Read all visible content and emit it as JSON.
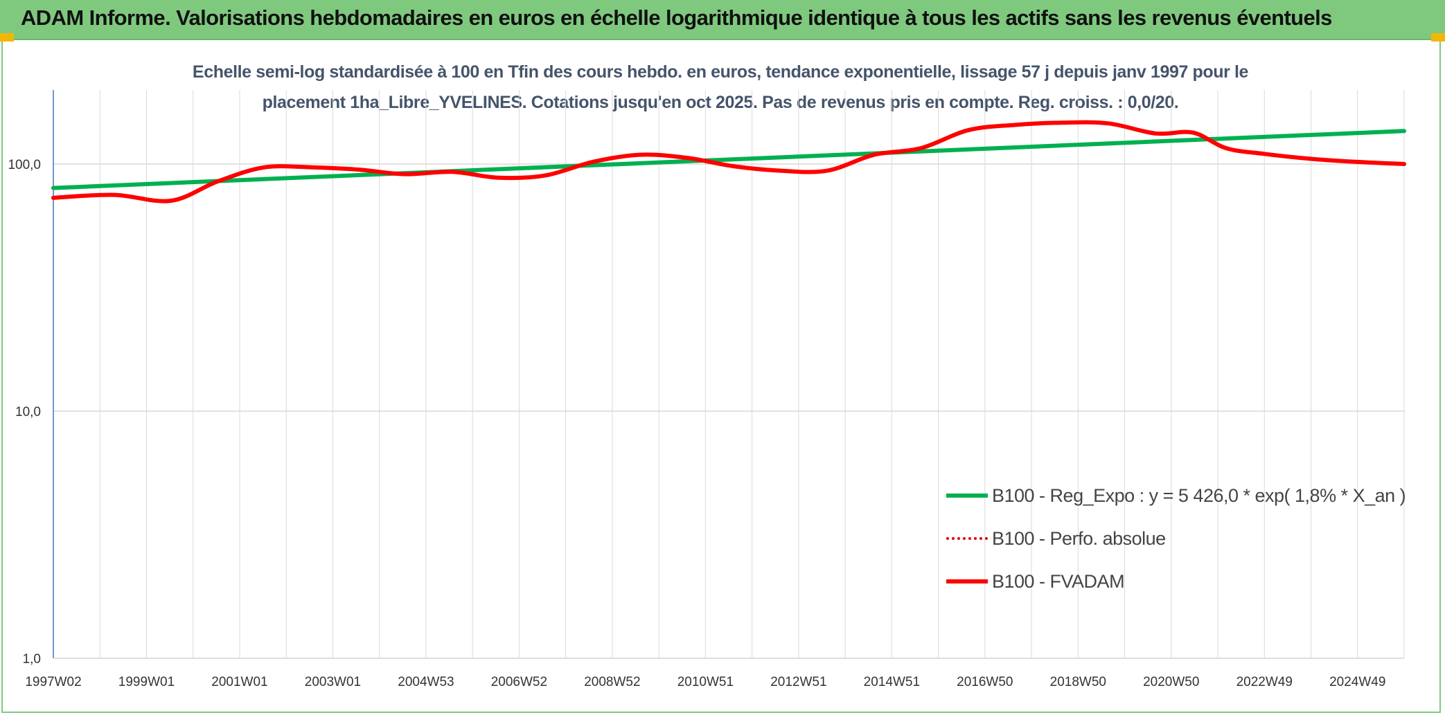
{
  "header": {
    "title": "ADAM Informe. Valorisations hebdomadaires en euros en échelle logarithmique identique à tous les actifs sans les revenus éventuels"
  },
  "chart_data": {
    "type": "line",
    "title_line1": "Echelle semi-log standardisée à 100 en Tfin des cours hebdo. en euros, tendance exponentielle, lissage 57 j depuis janv 1997 pour le",
    "title_line2": "placement 1ha_Libre_YVELINES. Cotations jusqu'en oct 2025. Pas de revenus pris en compte. Reg. croiss. : 0,0/20.",
    "y_scale": "log",
    "ylim": [
      1,
      200
    ],
    "y_ticks": [
      {
        "value": 1,
        "label": "1,0"
      },
      {
        "value": 10,
        "label": "10,0"
      },
      {
        "value": 100,
        "label": "100,0"
      }
    ],
    "x_tick_labels": [
      "1997W02",
      "1999W01",
      "2001W01",
      "2003W01",
      "2004W53",
      "2006W52",
      "2008W52",
      "2010W51",
      "2012W51",
      "2014W51",
      "2016W50",
      "2018W50",
      "2020W50",
      "2022W49",
      "2024W49"
    ],
    "xlim": [
      1997.0,
      2025.8
    ],
    "grid": true,
    "legend_position": "bottom-right",
    "colors": {
      "reg_expo": "#00b050",
      "perfo": "#e00000",
      "fvadam": "#ff0000",
      "grid": "#d9d9d9",
      "y_axis": "#4472c4"
    },
    "series": [
      {
        "name": "B100 - Reg_Expo : y = 5 426,0 * exp( 1,8% *  X_an )",
        "style": "solid",
        "x": [
          1997.0,
          2025.8
        ],
        "y": [
          80,
          136
        ]
      },
      {
        "name": "B100 - Perfo. absolue",
        "style": "dotted",
        "x": [],
        "y": []
      },
      {
        "name": "B100 - FVADAM",
        "style": "solid",
        "x": [
          1997.0,
          1998.3,
          1999.5,
          2000.5,
          2001.5,
          2002.5,
          2003.5,
          2004.5,
          2005.5,
          2006.5,
          2007.5,
          2008.5,
          2009.5,
          2010.5,
          2011.5,
          2012.5,
          2013.5,
          2014.5,
          2015.5,
          2016.5,
          2017.5,
          2018.5,
          2019.5,
          2020.5,
          2021.3,
          2022.0,
          2022.8,
          2023.8,
          2024.8,
          2025.8
        ],
        "y": [
          73,
          75,
          71,
          85,
          97,
          97,
          95,
          91,
          93,
          88,
          90,
          102,
          109,
          106,
          98,
          94,
          94,
          109,
          116,
          137,
          144,
          147,
          146,
          133,
          134,
          116,
          110,
          105,
          102,
          100
        ]
      }
    ]
  }
}
